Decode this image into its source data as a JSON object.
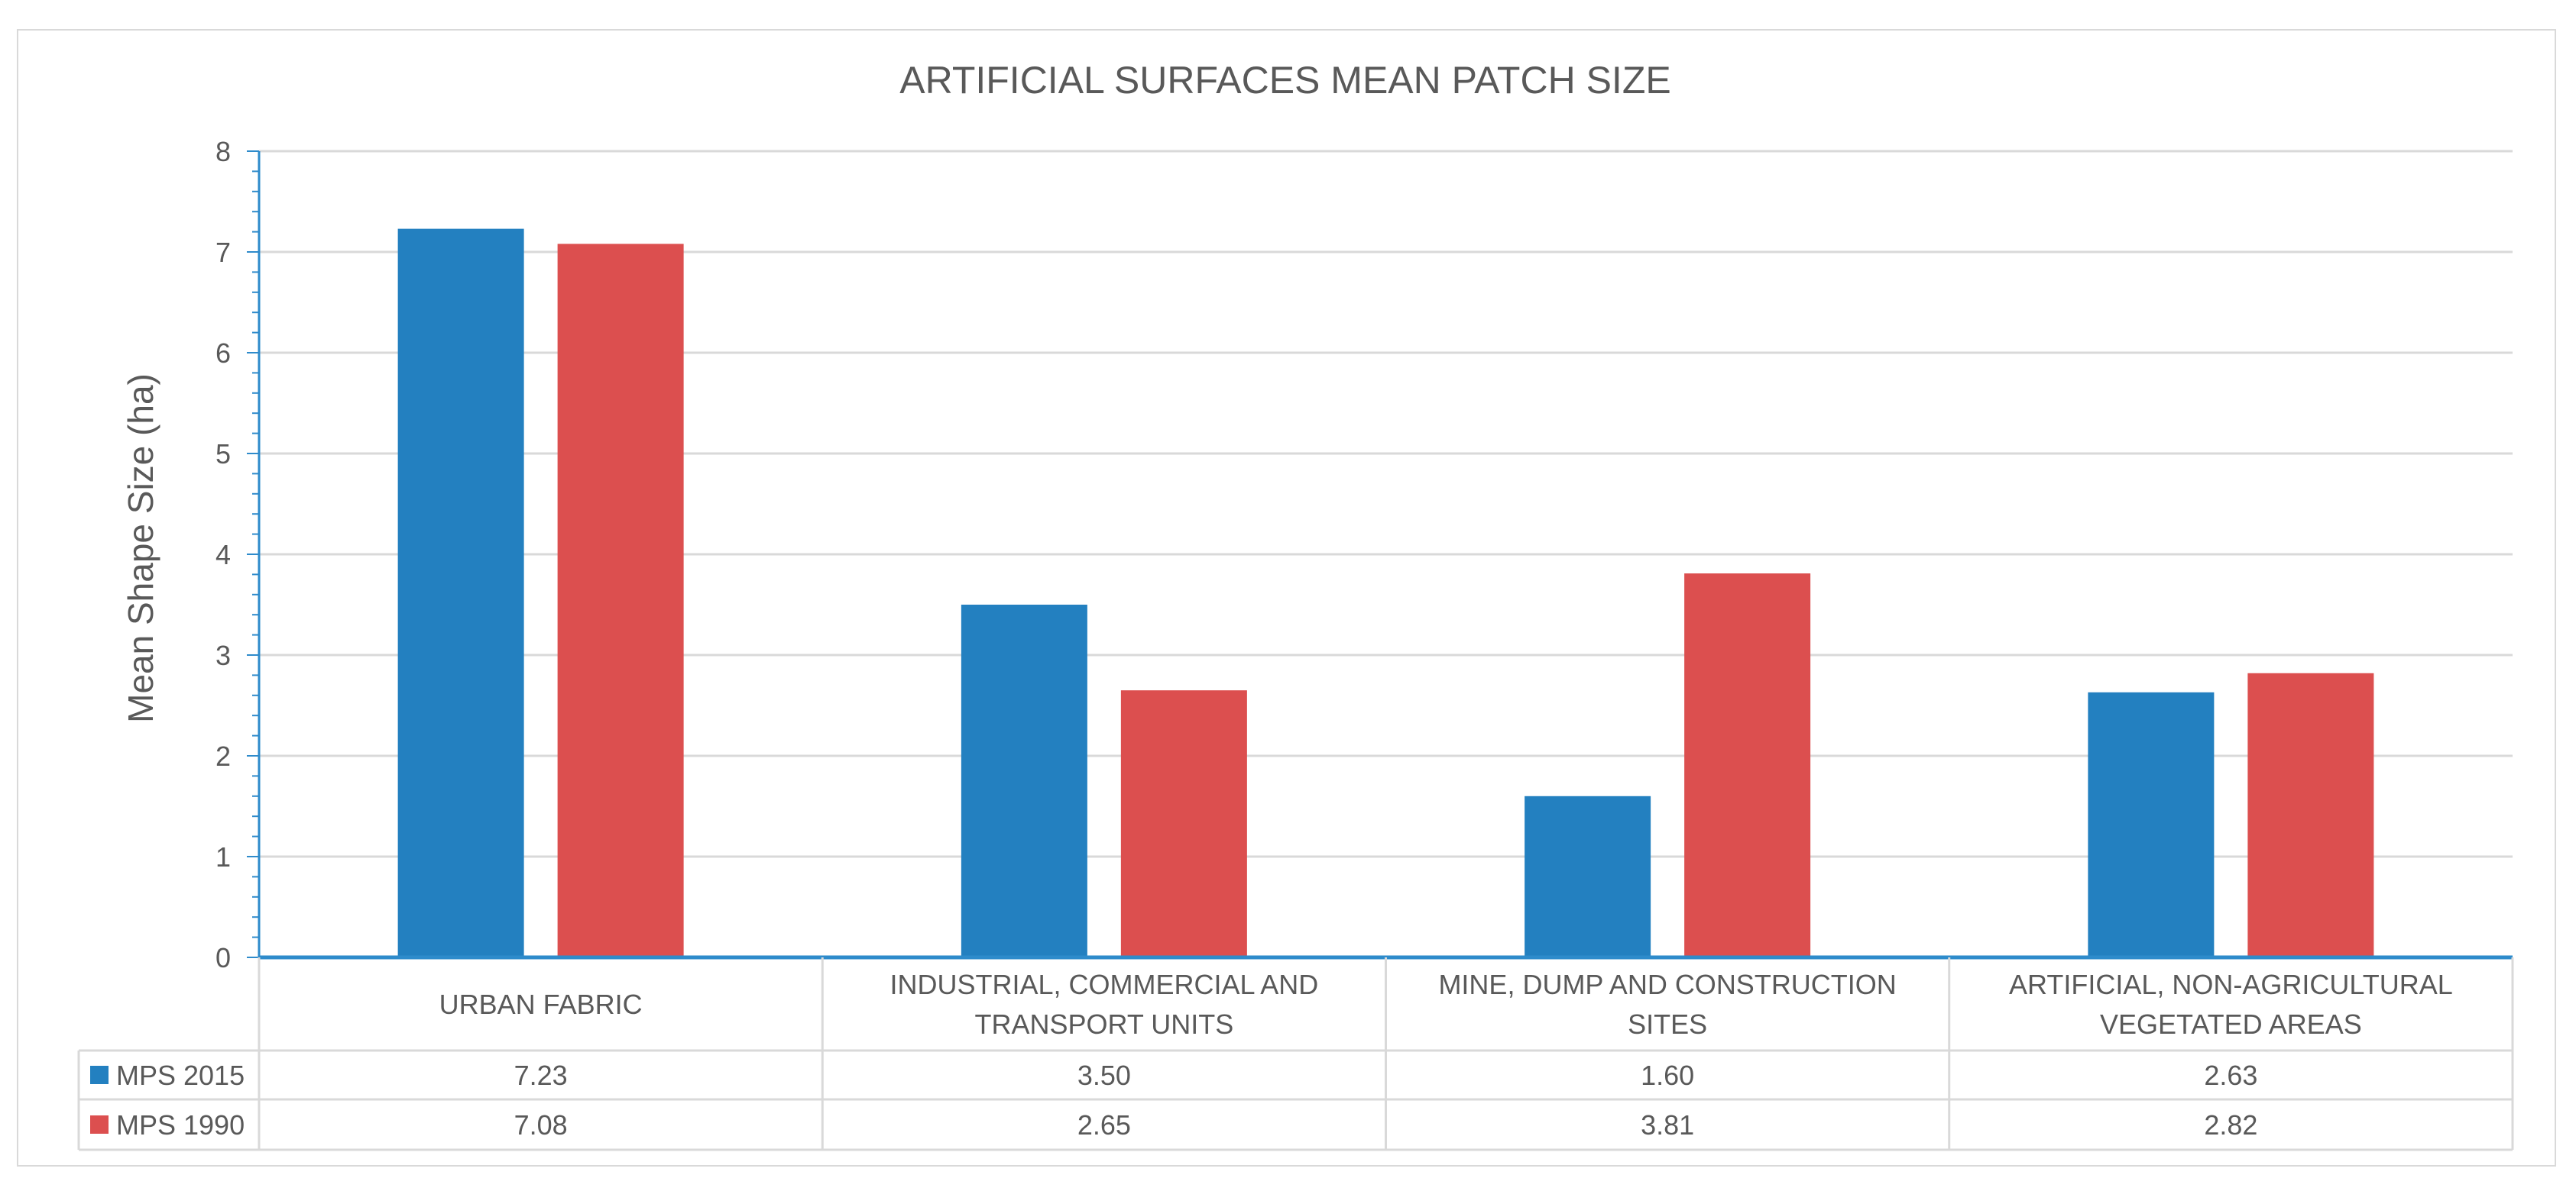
{
  "chart_data": {
    "type": "bar",
    "title": "ARTIFICIAL SURFACES MEAN PATCH SIZE",
    "xlabel": "",
    "ylabel": "Mean Shape Size (ha)",
    "ylim": [
      0,
      8
    ],
    "yticks": [
      "0",
      "1",
      "2",
      "3",
      "4",
      "5",
      "6",
      "7",
      "8"
    ],
    "grid": true,
    "legend": "data-table",
    "categories": [
      [
        "URBAN FABRIC"
      ],
      [
        "INDUSTRIAL, COMMERCIAL AND",
        "TRANSPORT UNITS"
      ],
      [
        "MINE, DUMP AND CONSTRUCTION",
        "SITES"
      ],
      [
        "ARTIFICIAL, NON-AGRICULTURAL",
        "VEGETATED AREAS"
      ]
    ],
    "series": [
      {
        "name": "MPS 2015",
        "color": "#2380C0",
        "values": [
          7.23,
          3.5,
          1.6,
          2.63
        ],
        "labels": [
          "7.23",
          "3.50",
          "1.60",
          "2.63"
        ]
      },
      {
        "name": "MPS 1990",
        "color": "#DC4F4F",
        "values": [
          7.08,
          2.65,
          3.81,
          2.82
        ],
        "labels": [
          "7.08",
          "2.65",
          "3.81",
          "2.82"
        ]
      }
    ]
  }
}
